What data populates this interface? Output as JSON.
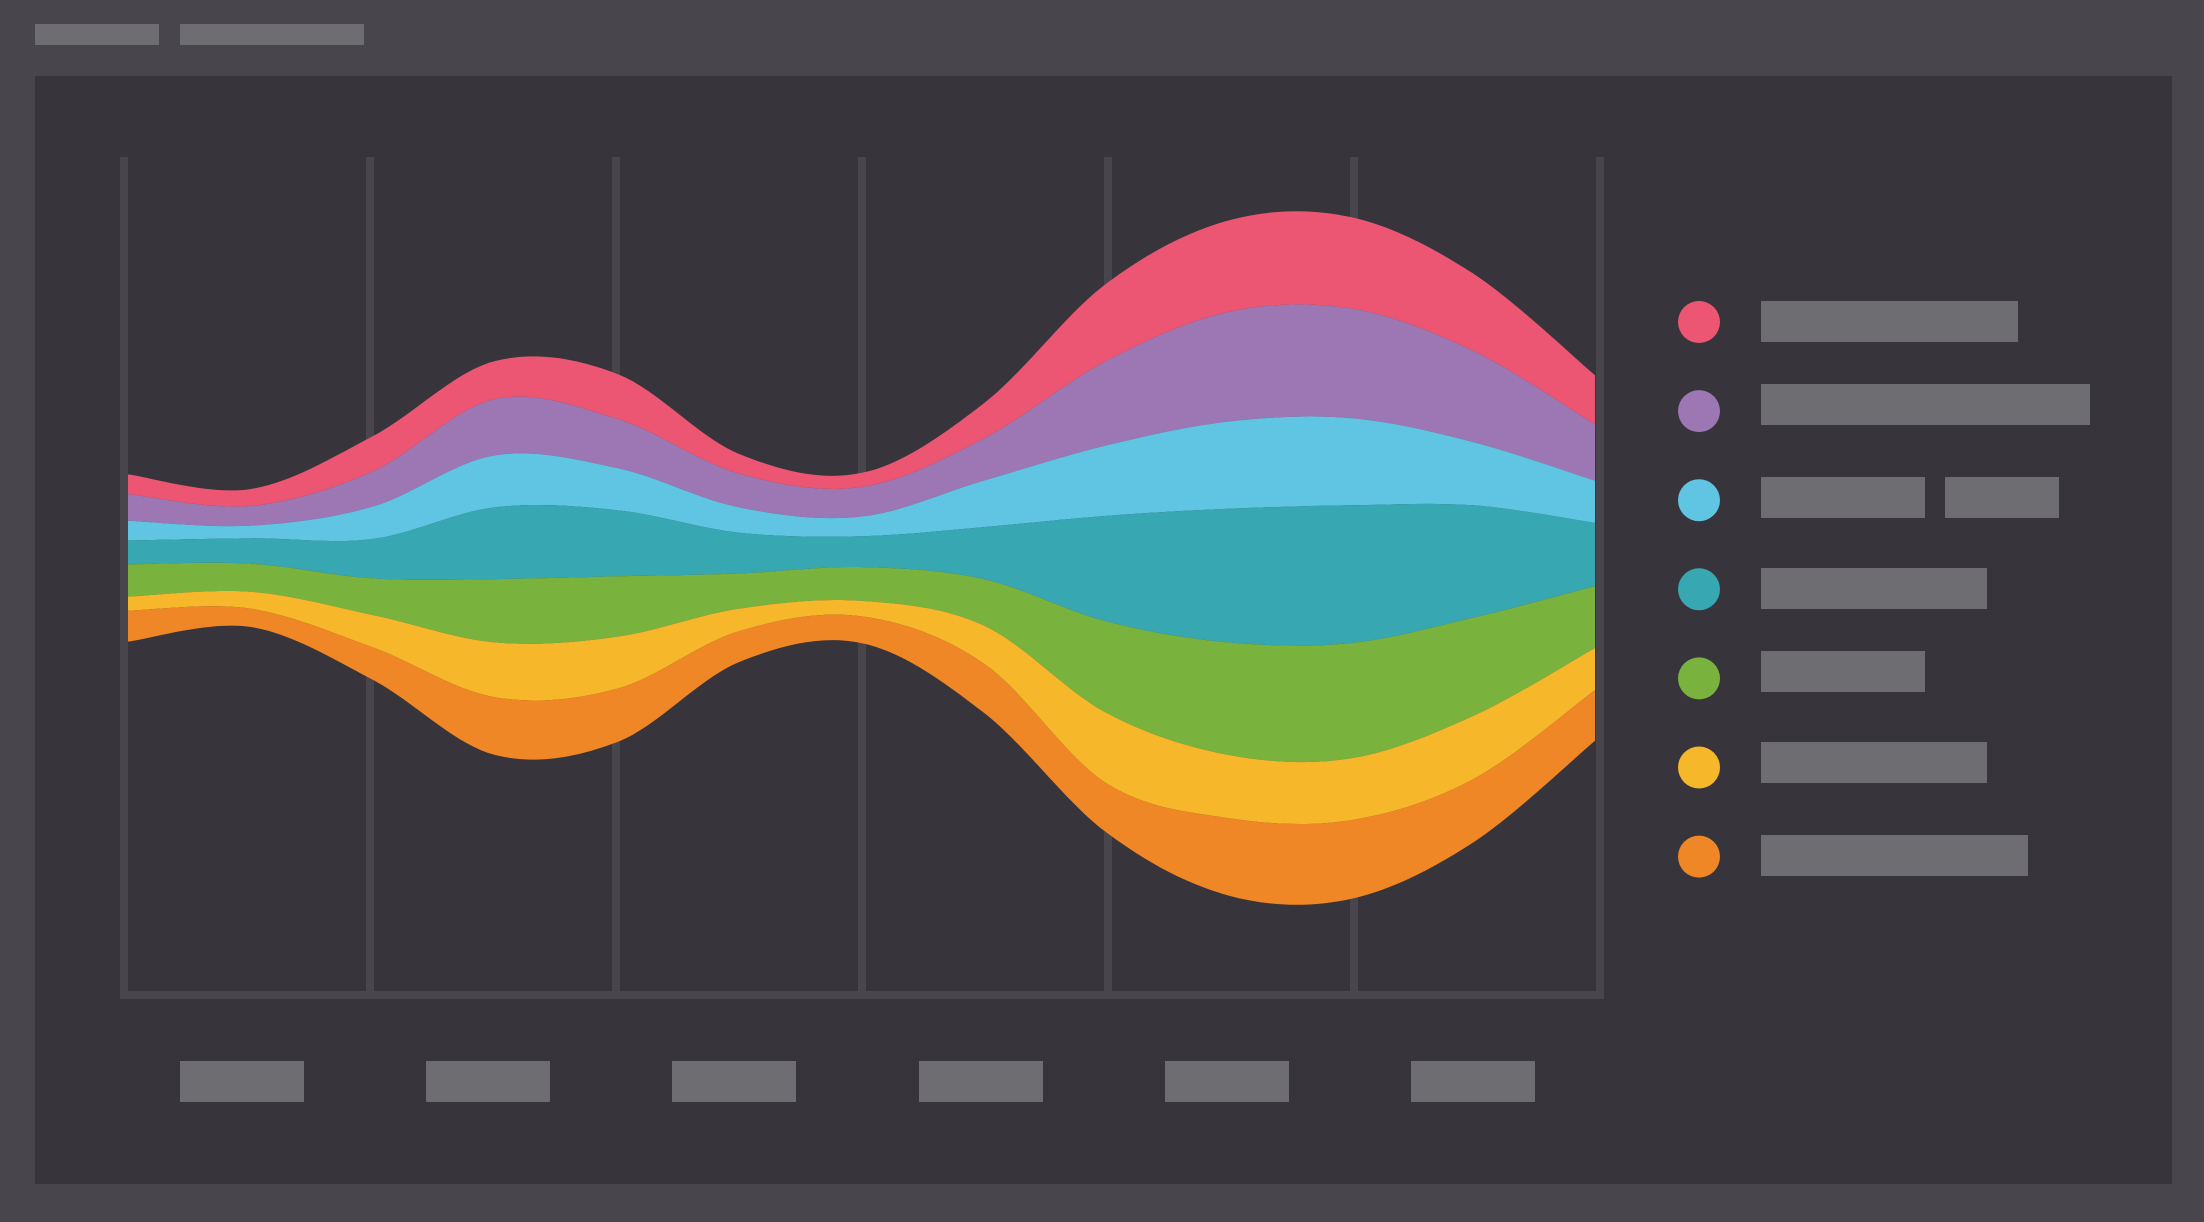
{
  "chart_data": {
    "type": "streamgraph",
    "series": [
      {
        "color": "#ec5672",
        "values": [
          14,
          12,
          25,
          27,
          32,
          14,
          10,
          25,
          55,
          65,
          65,
          55,
          35
        ]
      },
      {
        "color": "#9c77b3",
        "values": [
          19,
          14,
          25,
          40,
          35,
          24,
          21,
          30,
          60,
          78,
          78,
          65,
          40
        ]
      },
      {
        "color": "#60c4e3",
        "values": [
          14,
          9,
          23,
          37,
          30,
          18,
          14,
          33,
          50,
          62,
          62,
          45,
          30
        ]
      },
      {
        "color": "#37a7b1",
        "values": [
          17,
          18,
          28,
          51,
          47,
          29,
          22,
          37,
          75,
          95,
          98,
          80,
          45
        ]
      },
      {
        "color": "#7ab23e",
        "values": [
          23,
          20,
          26,
          45,
          43,
          25,
          24,
          33,
          65,
          80,
          82,
          70,
          44
        ]
      },
      {
        "color": "#f6b72a",
        "values": [
          10,
          12,
          23,
          39,
          37,
          16,
          11,
          27,
          50,
          45,
          44,
          45,
          30
        ]
      },
      {
        "color": "#f08726",
        "values": [
          22,
          13,
          23,
          41,
          38,
          22,
          19,
          35,
          35,
          55,
          56,
          45,
          36
        ]
      }
    ]
  }
}
